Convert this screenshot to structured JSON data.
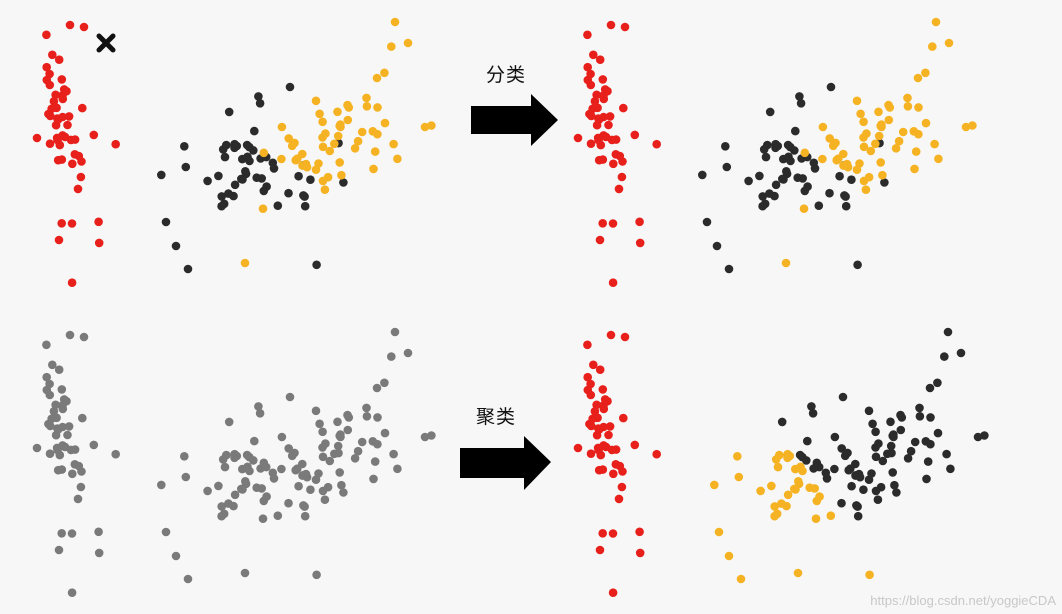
{
  "labels": {
    "top": "分类",
    "bottom": "聚类"
  },
  "watermark": "https://blog.csdn.net/yoggieCDA",
  "colors": {
    "red": "#e8201c",
    "black": "#2b2b2b",
    "orange": "#f5b324",
    "gray": "#7a7a7a",
    "arrow": "#000000",
    "marker": "#111111"
  },
  "icons": {
    "unknown_marker": "x-marker-icon",
    "arrow": "right-arrow-icon"
  }
}
